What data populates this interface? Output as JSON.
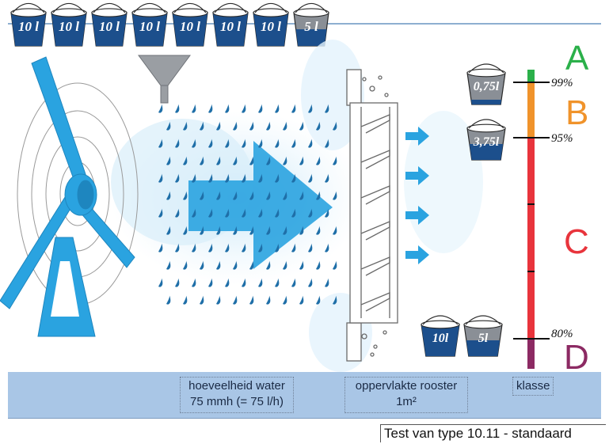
{
  "top_buckets": [
    {
      "label": "10 l",
      "fill": 1.0
    },
    {
      "label": "10 l",
      "fill": 1.0
    },
    {
      "label": "10 l",
      "fill": 1.0
    },
    {
      "label": "10 l",
      "fill": 1.0
    },
    {
      "label": "10 l",
      "fill": 1.0
    },
    {
      "label": "10 l",
      "fill": 1.0
    },
    {
      "label": "10 l",
      "fill": 1.0
    },
    {
      "label": "5 l",
      "fill": 0.5
    }
  ],
  "class_scale": {
    "levels": [
      {
        "value": "99%"
      },
      {
        "value": "95%"
      },
      {
        "value": "80%"
      }
    ],
    "classes": [
      {
        "letter": "A",
        "color": "#2bb04a"
      },
      {
        "letter": "B",
        "color": "#f0932b"
      },
      {
        "letter": "C",
        "color": "#e8343c"
      },
      {
        "letter": "D",
        "color": "#8c2a63"
      }
    ]
  },
  "scale_buckets": [
    {
      "label": "0,75l",
      "fill": 0.15
    },
    {
      "label": "3,75l",
      "fill": 0.5
    },
    {
      "label": "10l",
      "fill": 1.0
    },
    {
      "label": "5l",
      "fill": 0.5
    }
  ],
  "info": {
    "water_label": "hoeveelheid water",
    "water_value": "75 mmh (= 75 l/h)",
    "surface_label": "oppervlakte rooster",
    "surface_value": "1m²",
    "class_label": "klasse"
  },
  "caption": "Test van type 10.11 - standaard",
  "colors": {
    "water_blue": "#2aa3e0",
    "drop_blue": "#1f6fa8",
    "bucket_blue": "#1c4f8c",
    "bucket_grey": "#8a8f96",
    "band_blue": "#a9c6e6"
  }
}
